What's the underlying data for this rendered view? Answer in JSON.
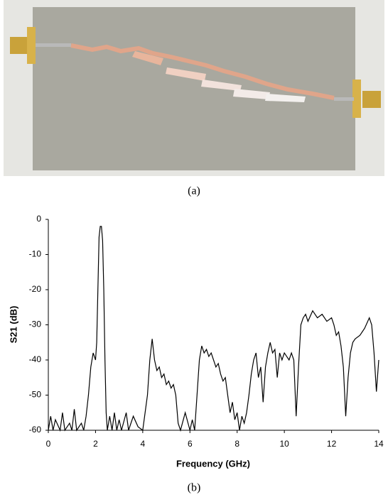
{
  "photo_caption": "(a)",
  "chart_data": {
    "type": "line",
    "caption": "(b)",
    "x_label": "Frequency (GHz)",
    "y_label": "S21 (dB)",
    "xlim": [
      0,
      14
    ],
    "xticks": [
      0,
      2,
      4,
      6,
      8,
      10,
      12,
      14
    ],
    "ylim": [
      -60,
      0
    ],
    "yticks": [
      0,
      -10,
      -20,
      -30,
      -40,
      -50,
      -60
    ],
    "grid": false,
    "x": [
      0,
      0.1,
      0.2,
      0.3,
      0.5,
      0.6,
      0.7,
      0.9,
      1.0,
      1.1,
      1.2,
      1.4,
      1.5,
      1.6,
      1.7,
      1.8,
      1.9,
      2.0,
      2.05,
      2.1,
      2.15,
      2.2,
      2.25,
      2.3,
      2.35,
      2.4,
      2.45,
      2.5,
      2.6,
      2.7,
      2.8,
      2.9,
      3.0,
      3.1,
      3.3,
      3.4,
      3.6,
      3.8,
      4.0,
      4.1,
      4.2,
      4.3,
      4.4,
      4.5,
      4.6,
      4.7,
      4.8,
      4.9,
      5.0,
      5.1,
      5.2,
      5.3,
      5.4,
      5.5,
      5.6,
      5.8,
      6.0,
      6.1,
      6.2,
      6.3,
      6.4,
      6.5,
      6.6,
      6.7,
      6.8,
      6.9,
      7.0,
      7.1,
      7.2,
      7.3,
      7.4,
      7.5,
      7.6,
      7.7,
      7.8,
      7.9,
      8.0,
      8.1,
      8.2,
      8.3,
      8.4,
      8.5,
      8.6,
      8.7,
      8.8,
      8.9,
      9.0,
      9.1,
      9.2,
      9.3,
      9.4,
      9.5,
      9.6,
      9.7,
      9.8,
      9.9,
      10.0,
      10.1,
      10.2,
      10.3,
      10.4,
      10.5,
      10.6,
      10.7,
      10.8,
      10.9,
      11.0,
      11.2,
      11.4,
      11.6,
      11.8,
      12.0,
      12.1,
      12.2,
      12.3,
      12.4,
      12.5,
      12.6,
      12.7,
      12.8,
      12.9,
      13.0,
      13.2,
      13.4,
      13.6,
      13.7,
      13.8,
      13.9,
      14.0
    ],
    "series": [
      {
        "color": "#000000",
        "values": [
          -60,
          -56,
          -60,
          -57,
          -60,
          -55,
          -60,
          -58,
          -60,
          -54,
          -60,
          -58,
          -60,
          -56,
          -50,
          -42,
          -38,
          -40,
          -35,
          -20,
          -5,
          -2,
          -2,
          -6,
          -20,
          -40,
          -55,
          -60,
          -56,
          -60,
          -55,
          -60,
          -57,
          -60,
          -55,
          -60,
          -56,
          -59,
          -60,
          -55,
          -50,
          -40,
          -34,
          -40,
          -43,
          -42,
          -45,
          -44,
          -47,
          -46,
          -48,
          -47,
          -50,
          -58,
          -60,
          -55,
          -60,
          -57,
          -60,
          -50,
          -40,
          -36,
          -38,
          -37,
          -39,
          -38,
          -40,
          -42,
          -41,
          -44,
          -46,
          -45,
          -50,
          -55,
          -52,
          -57,
          -55,
          -60,
          -56,
          -58,
          -55,
          -50,
          -44,
          -40,
          -38,
          -45,
          -42,
          -52,
          -42,
          -38,
          -35,
          -38,
          -37,
          -45,
          -38,
          -40,
          -38,
          -39,
          -40,
          -38,
          -40,
          -56,
          -42,
          -30,
          -28,
          -27,
          -29,
          -26,
          -28,
          -27,
          -29,
          -28,
          -30,
          -33,
          -32,
          -36,
          -42,
          -56,
          -45,
          -38,
          -35,
          -34,
          -33,
          -31,
          -28,
          -30,
          -38,
          -49,
          -40
        ]
      }
    ]
  }
}
